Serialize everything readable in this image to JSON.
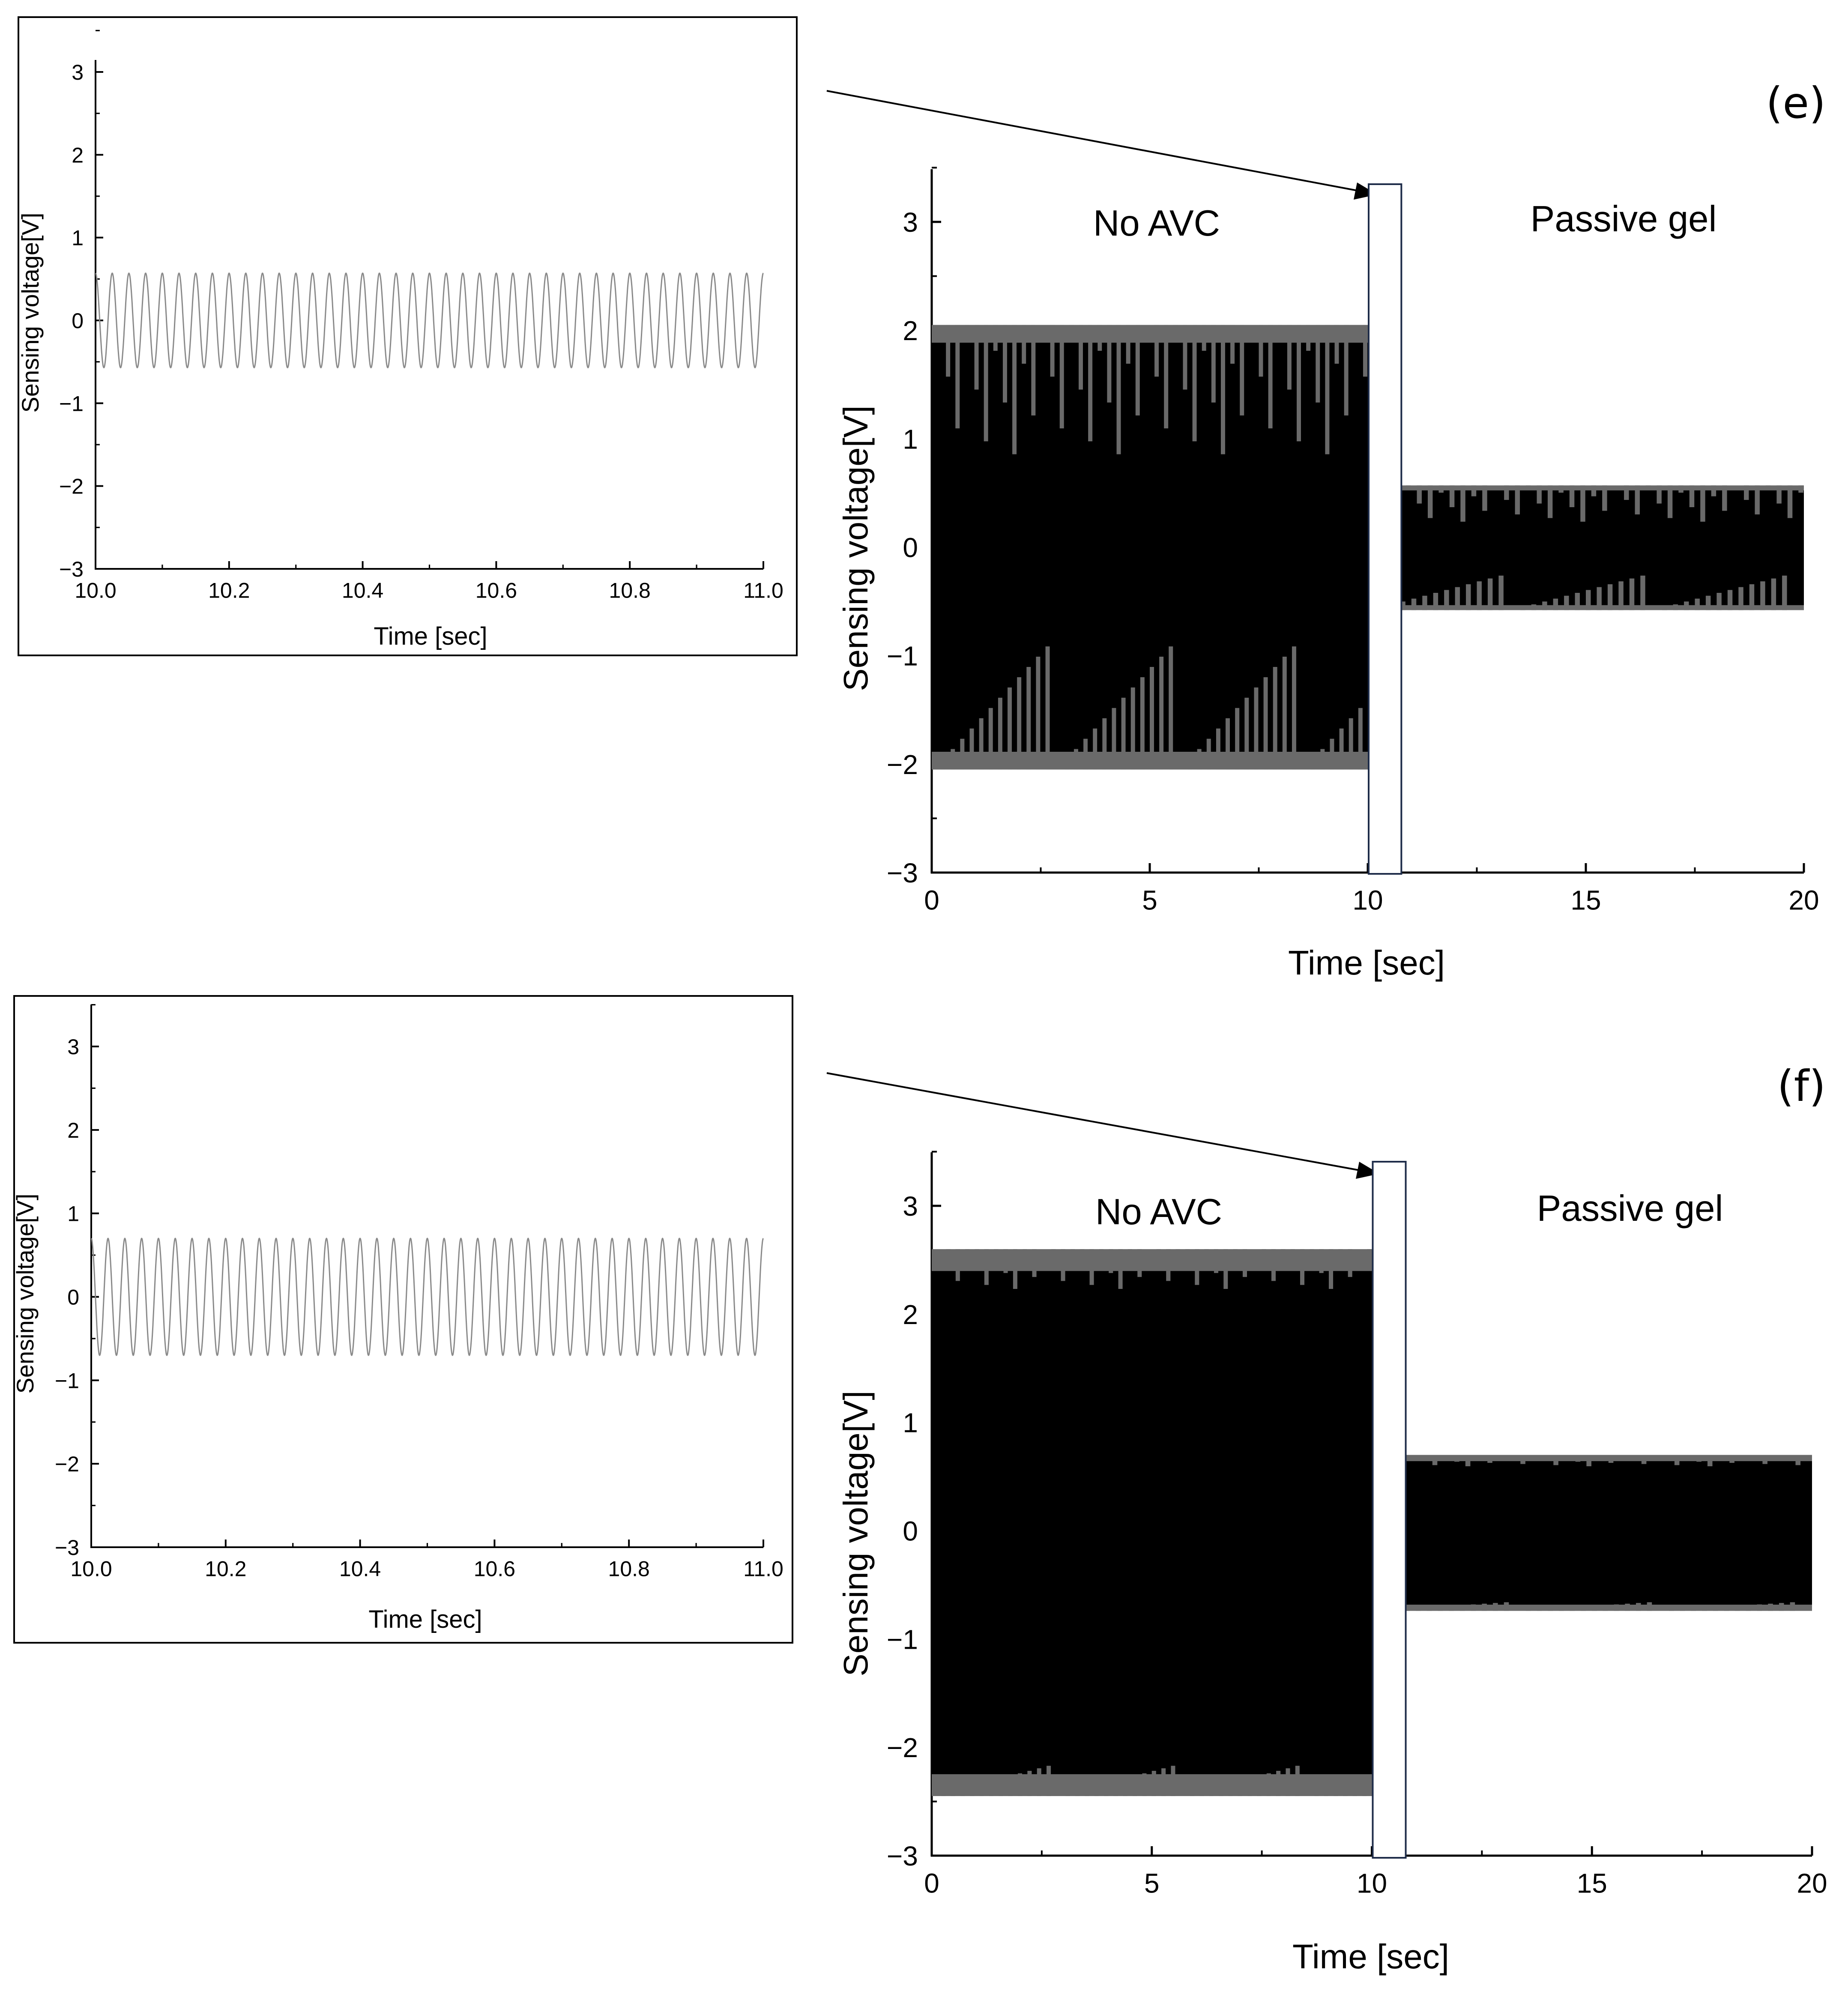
{
  "chart_data": [
    {
      "id": "e-inset",
      "type": "line",
      "xlabel": "Time [sec]",
      "ylabel": "Sensing voltage[V]",
      "xlim": [
        10.0,
        11.0
      ],
      "ylim": [
        -3,
        3.5
      ],
      "xticks": [
        "10.0",
        "10.2",
        "10.4",
        "10.6",
        "10.8",
        "11.0"
      ],
      "yticks": [
        "3",
        "2",
        "1",
        "0",
        "−1",
        "−2",
        "−3"
      ],
      "series": [
        {
          "name": "sensing voltage",
          "amplitude": 0.57,
          "frequency_hz": 40,
          "phase_end": "negative"
        }
      ]
    },
    {
      "id": "e-main",
      "type": "line",
      "panel_label": "(e)",
      "xlabel": "Time [sec]",
      "ylabel": "Sensing voltage[V]",
      "xlim": [
        0,
        20
      ],
      "ylim": [
        -3,
        3.5
      ],
      "xticks": [
        "0",
        "5",
        "10",
        "15",
        "20"
      ],
      "yticks": [
        "3",
        "2",
        "1",
        "0",
        "−1",
        "−2",
        "−3"
      ],
      "annotations": [
        "No AVC",
        "Passive gel"
      ],
      "zoom_window": [
        10.0,
        10.75
      ],
      "series": [
        {
          "name": "No AVC",
          "t_range": [
            0,
            10
          ],
          "envelope_max": 2.05,
          "envelope_min": -2.05
        },
        {
          "name": "Passive gel",
          "t_range": [
            10,
            20
          ],
          "envelope_max": 0.57,
          "envelope_min": -0.58
        }
      ]
    },
    {
      "id": "f-inset",
      "type": "line",
      "xlabel": "Time [sec]",
      "ylabel": "Sensing voltage[V]",
      "xlim": [
        10.0,
        11.0
      ],
      "ylim": [
        -3,
        3.5
      ],
      "xticks": [
        "10.0",
        "10.2",
        "10.4",
        "10.6",
        "10.8",
        "11.0"
      ],
      "yticks": [
        "3",
        "2",
        "1",
        "0",
        "−1",
        "−2",
        "−3"
      ],
      "series": [
        {
          "name": "sensing voltage",
          "amplitude": 0.7,
          "frequency_hz": 40,
          "phase_end": "mid"
        }
      ]
    },
    {
      "id": "f-main",
      "type": "line",
      "panel_label": "(f)",
      "xlabel": "Time [sec]",
      "ylabel": "Sensing voltage[V]",
      "xlim": [
        0,
        20
      ],
      "ylim": [
        -3,
        3.5
      ],
      "xticks": [
        "0",
        "5",
        "10",
        "15",
        "20"
      ],
      "yticks": [
        "3",
        "2",
        "1",
        "0",
        "−1",
        "−2",
        "−3"
      ],
      "annotations": [
        "No AVC",
        "Passive gel"
      ],
      "zoom_window": [
        10.0,
        10.75
      ],
      "series": [
        {
          "name": "No AVC",
          "t_range": [
            0,
            10
          ],
          "envelope_max": 2.6,
          "envelope_min": -2.45
        },
        {
          "name": "Passive gel",
          "t_range": [
            10,
            20
          ],
          "envelope_max": 0.7,
          "envelope_min": -0.74
        }
      ]
    }
  ]
}
